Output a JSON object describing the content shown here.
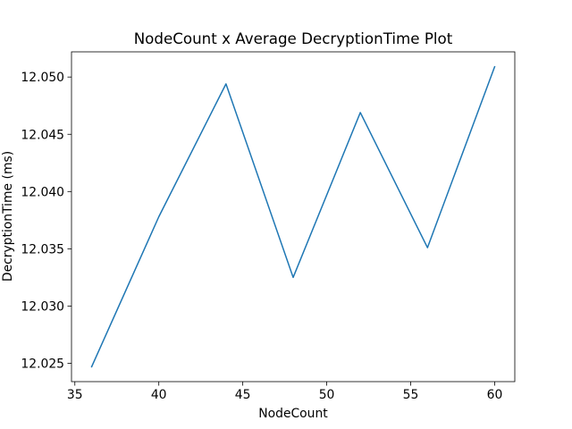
{
  "chart_data": {
    "type": "line",
    "title": "NodeCount x Average DecryptionTime Plot",
    "xlabel": "NodeCount",
    "ylabel": "DecryptionTime (ms)",
    "x": [
      36,
      40,
      44,
      48,
      52,
      56,
      60
    ],
    "series": [
      {
        "name": "DecryptionTime",
        "color": "#1f77b4",
        "values": [
          12.0247,
          12.0378,
          12.0494,
          12.0325,
          12.0469,
          12.0351,
          12.0509
        ]
      }
    ],
    "xlim": [
      34.8,
      61.2
    ],
    "ylim": [
      12.0234,
      12.0522
    ],
    "xticks": [
      35,
      40,
      45,
      50,
      55,
      60
    ],
    "xtick_labels": [
      "35",
      "40",
      "45",
      "50",
      "55",
      "60"
    ],
    "yticks": [
      12.025,
      12.03,
      12.035,
      12.04,
      12.045,
      12.05
    ],
    "ytick_labels": [
      "12.025",
      "12.030",
      "12.035",
      "12.040",
      "12.045",
      "12.050"
    ],
    "grid": false,
    "legend": "none"
  }
}
